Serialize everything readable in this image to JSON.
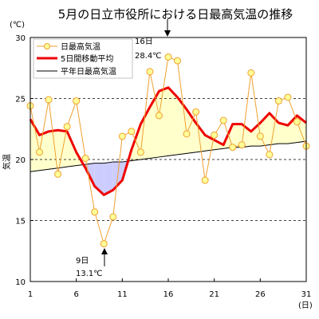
{
  "chart_data": {
    "type": "line",
    "title": "5月の日立市役所における日最高気温の推移",
    "y_unit": "(℃)",
    "ylabel": "気温",
    "x_unit": "(日)",
    "xlim": [
      1,
      31
    ],
    "ylim": [
      10,
      30
    ],
    "x_ticks": [
      1,
      6,
      11,
      16,
      21,
      26,
      31
    ],
    "y_ticks": [
      10,
      15,
      20,
      25,
      30
    ],
    "grid": "horizontal dashed at 20 and 25",
    "legend_position": "top-left",
    "x": [
      1,
      2,
      3,
      4,
      5,
      6,
      7,
      8,
      9,
      10,
      11,
      12,
      13,
      14,
      15,
      16,
      17,
      18,
      19,
      20,
      21,
      22,
      23,
      24,
      25,
      26,
      27,
      28,
      29,
      30,
      31
    ],
    "series": [
      {
        "name": "日最高気温",
        "color": "#f0a030",
        "marker_fill": "#ffff99",
        "values": [
          24.4,
          20.6,
          24.9,
          18.8,
          22.7,
          24.8,
          20.1,
          15.7,
          13.1,
          15.3,
          21.9,
          22.3,
          20.6,
          27.2,
          23.6,
          28.4,
          28.1,
          22.1,
          23.9,
          18.3,
          22.0,
          23.2,
          21.0,
          21.2,
          27.1,
          21.9,
          20.4,
          24.8,
          25.1,
          23.1,
          21.1
        ]
      },
      {
        "name": "5日間移動平均",
        "color": "#ee0000",
        "values": [
          23.3,
          22.0,
          22.3,
          22.4,
          22.3,
          20.6,
          19.3,
          17.8,
          17.1,
          17.5,
          18.3,
          20.8,
          22.9,
          24.3,
          25.6,
          25.9,
          25.1,
          24.1,
          23.0,
          22.0,
          21.6,
          21.2,
          22.9,
          22.9,
          22.3,
          23.0,
          23.8,
          23.0,
          22.8,
          23.6,
          23.0
        ]
      },
      {
        "name": "平年日最高気温",
        "color": "#000000",
        "values": [
          19.0,
          19.1,
          19.2,
          19.3,
          19.4,
          19.5,
          19.6,
          19.7,
          19.7,
          19.8,
          19.8,
          19.9,
          20.0,
          20.1,
          20.2,
          20.3,
          20.4,
          20.5,
          20.6,
          20.7,
          20.8,
          20.9,
          21.0,
          21.0,
          21.1,
          21.1,
          21.2,
          21.3,
          21.3,
          21.4,
          21.5
        ]
      }
    ],
    "annotations": [
      {
        "day_label": "16日",
        "value_label": "28.4℃",
        "x": 16
      },
      {
        "day_label": "9日",
        "value_label": "13.1℃",
        "x": 9
      }
    ],
    "fill_above_color": "#ffffcc",
    "fill_below_color": "#ccccff"
  }
}
